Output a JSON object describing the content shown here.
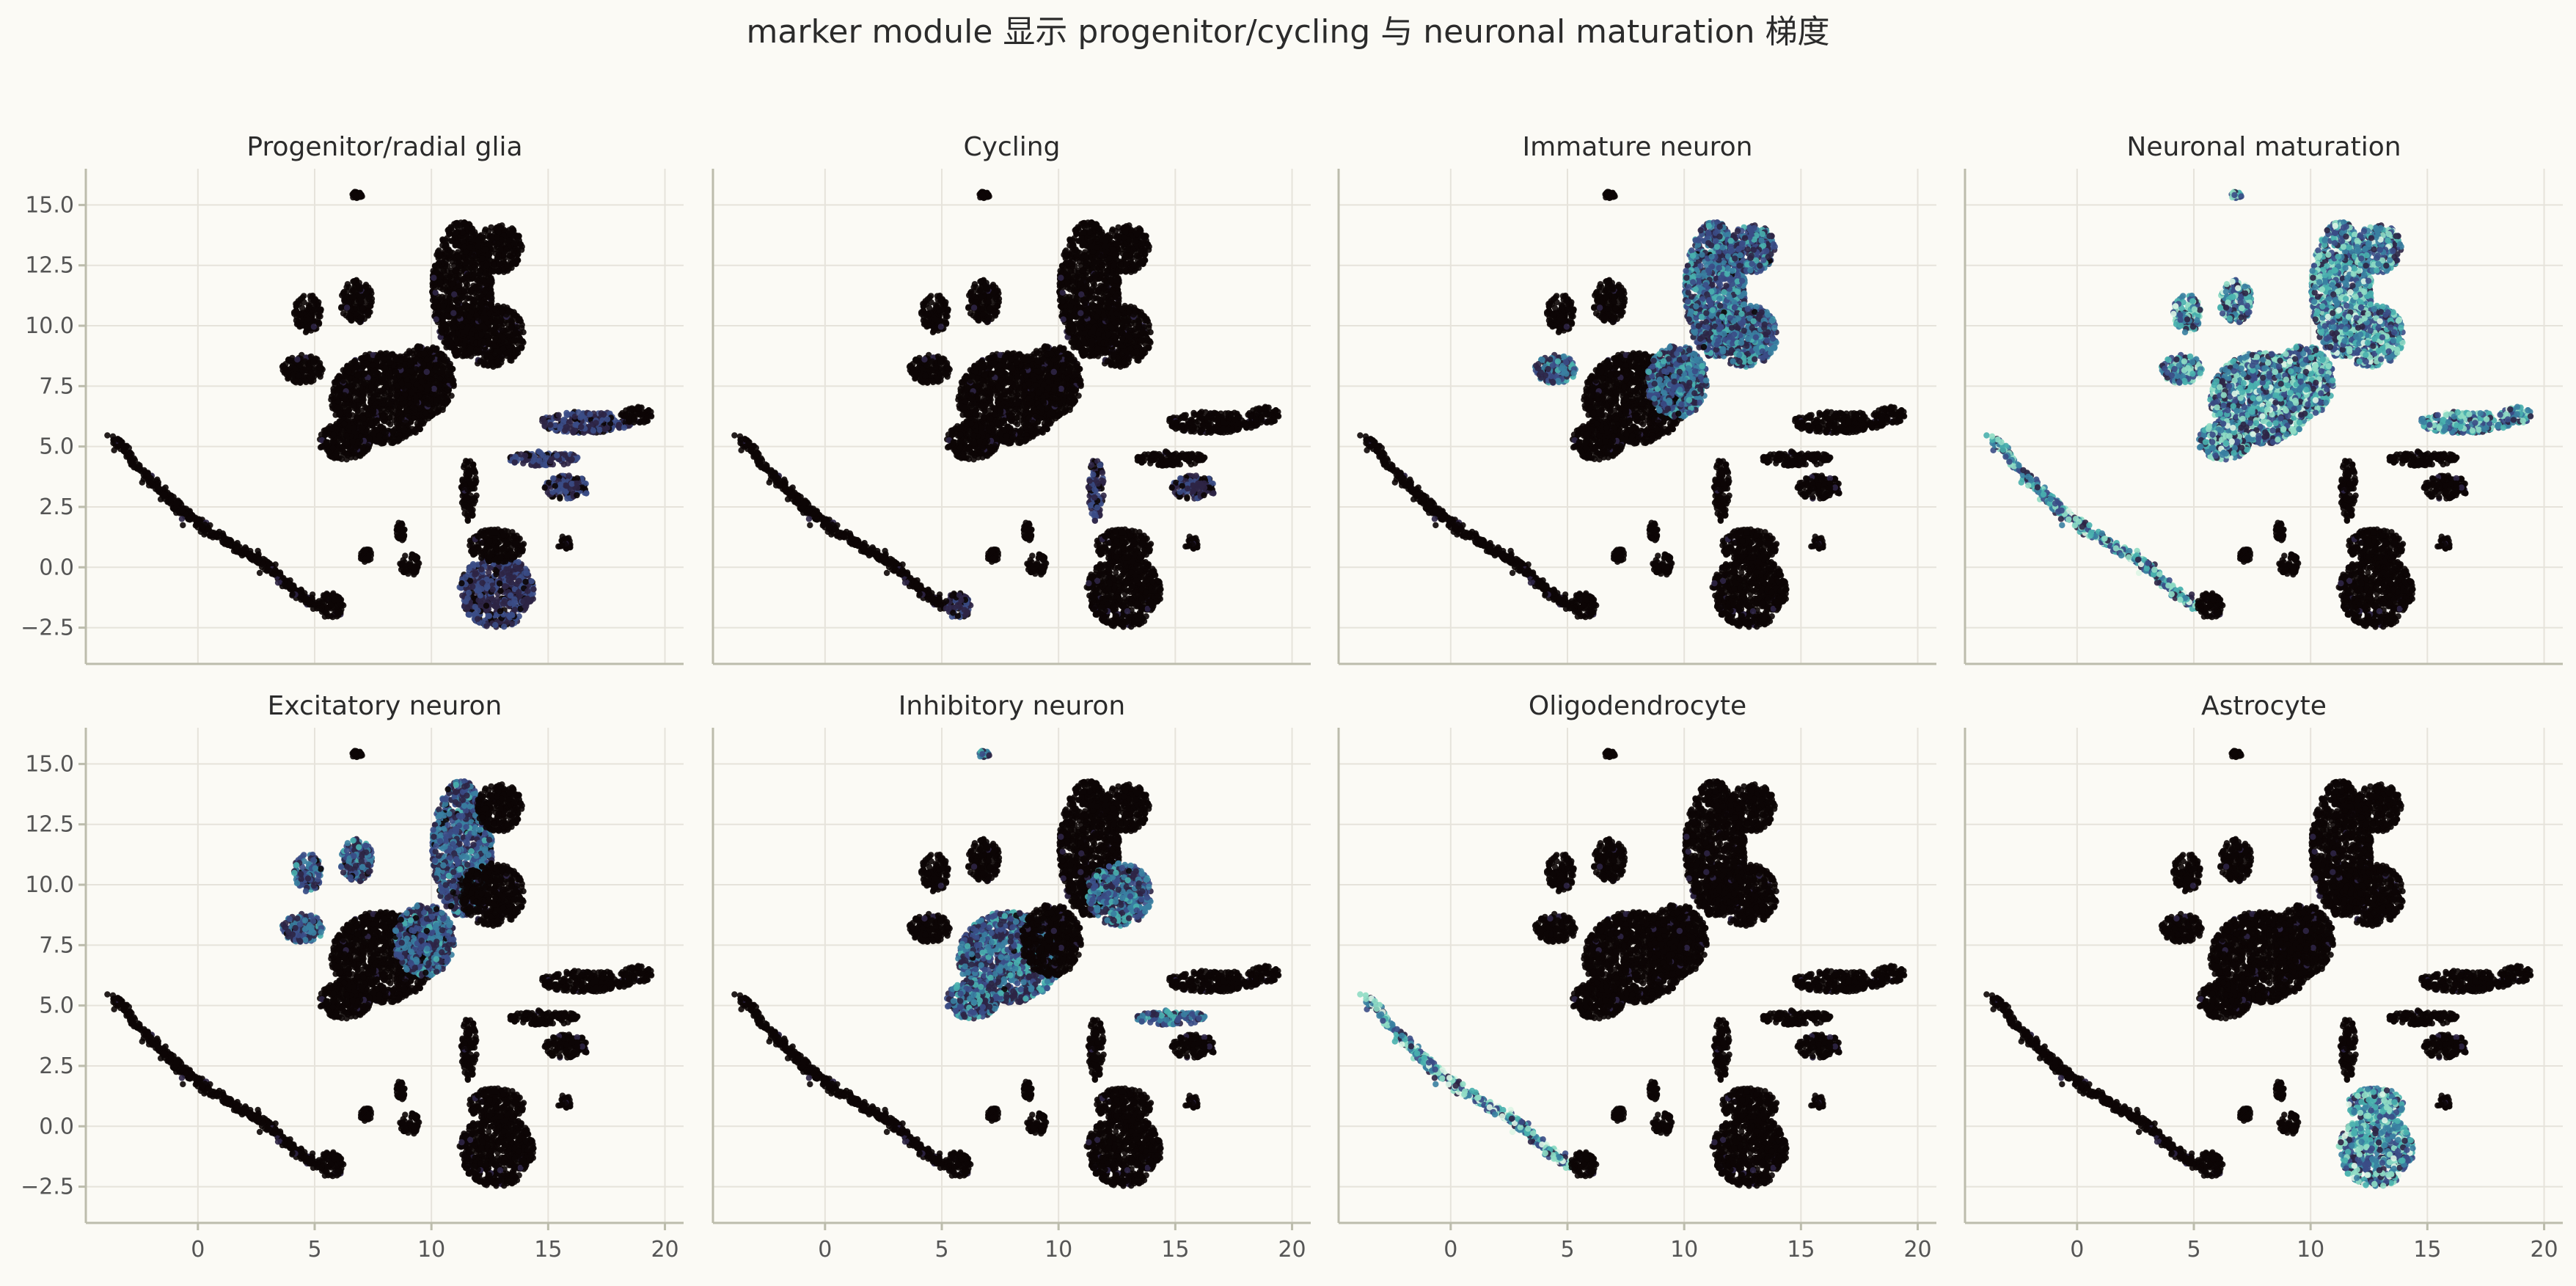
{
  "chart_data": {
    "type": "scatter",
    "title": "marker module 显示 progenitor/cycling 与 neuronal maturation 梯度",
    "xlim": [
      -4.8,
      20.8
    ],
    "ylim": [
      -4.0,
      16.5
    ],
    "x_ticks": [
      0,
      5,
      10,
      15,
      20
    ],
    "y_ticks": [
      -2.5,
      0.0,
      2.5,
      5.0,
      7.5,
      10.0,
      12.5,
      15.0
    ],
    "x_tick_labels": [
      "0",
      "5",
      "10",
      "15",
      "20"
    ],
    "y_tick_labels": [
      "−2.5",
      "0.0",
      "2.5",
      "5.0",
      "7.5",
      "10.0",
      "12.5",
      "15.0"
    ],
    "grid": true,
    "legend": "none",
    "colormap": [
      "#0c0606",
      "#2d2545",
      "#3b4c86",
      "#3a7fa1",
      "#49b0ae",
      "#8fdcc4",
      "#ddf5e6"
    ],
    "cluster_regions": [
      {
        "name": "streak",
        "points": [
          [
            -3.6,
            5.4
          ],
          [
            -2.5,
            4.1
          ],
          [
            -1.2,
            2.8
          ],
          [
            0.0,
            1.8
          ],
          [
            1.5,
            0.9
          ],
          [
            2.9,
            0.1
          ],
          [
            4.1,
            -0.9
          ],
          [
            5.0,
            -1.6
          ]
        ],
        "spread": 0.18
      },
      {
        "name": "bottom-left-blob",
        "center": [
          5.7,
          -1.6
        ],
        "rx": 0.55,
        "ry": 0.55
      },
      {
        "name": "top-small",
        "center": [
          6.8,
          15.4
        ],
        "rx": 0.25,
        "ry": 0.15
      },
      {
        "name": "left-lobe-1",
        "center": [
          4.7,
          10.5
        ],
        "rx": 0.6,
        "ry": 0.8
      },
      {
        "name": "left-lobe-2",
        "center": [
          6.8,
          11.0
        ],
        "rx": 0.7,
        "ry": 0.9
      },
      {
        "name": "left-lobe-3",
        "center": [
          4.5,
          8.2
        ],
        "rx": 0.9,
        "ry": 0.6
      },
      {
        "name": "center-mass",
        "center": [
          7.9,
          7.0
        ],
        "rx": 2.2,
        "ry": 1.9
      },
      {
        "name": "lower-center",
        "center": [
          6.3,
          5.2
        ],
        "rx": 1.1,
        "ry": 0.8
      },
      {
        "name": "center-right",
        "center": [
          9.7,
          7.7
        ],
        "rx": 1.3,
        "ry": 1.5
      },
      {
        "name": "upper-column",
        "center": [
          11.3,
          11.5
        ],
        "rx": 1.3,
        "ry": 2.8
      },
      {
        "name": "upper-right-blob",
        "center": [
          12.9,
          13.2
        ],
        "rx": 1.0,
        "ry": 1.0
      },
      {
        "name": "right-mid",
        "center": [
          12.6,
          9.6
        ],
        "rx": 1.4,
        "ry": 1.3
      },
      {
        "name": "right-arm",
        "center": [
          16.6,
          6.0
        ],
        "rx": 2.0,
        "ry": 0.45
      },
      {
        "name": "right-arm-end",
        "center": [
          18.8,
          6.3
        ],
        "rx": 0.7,
        "ry": 0.35
      },
      {
        "name": "thin-branch",
        "center": [
          14.8,
          4.5
        ],
        "rx": 1.5,
        "ry": 0.3
      },
      {
        "name": "right-scatter",
        "center": [
          15.8,
          3.3
        ],
        "rx": 1.0,
        "ry": 0.5
      },
      {
        "name": "mid-column",
        "center": [
          11.6,
          3.2
        ],
        "rx": 0.35,
        "ry": 1.3
      },
      {
        "name": "bottom-blob",
        "center": [
          12.8,
          -1.0
        ],
        "rx": 1.6,
        "ry": 1.5
      },
      {
        "name": "bottom-blob-top",
        "center": [
          12.8,
          0.9
        ],
        "rx": 1.2,
        "ry": 0.7
      },
      {
        "name": "small-mid",
        "center": [
          9.1,
          0.1
        ],
        "rx": 0.45,
        "ry": 0.45
      },
      {
        "name": "small-mid-2",
        "center": [
          8.7,
          1.5
        ],
        "rx": 0.2,
        "ry": 0.4
      },
      {
        "name": "small-right",
        "center": [
          15.7,
          1.0
        ],
        "rx": 0.3,
        "ry": 0.3
      },
      {
        "name": "small-left",
        "center": [
          7.2,
          0.5
        ],
        "rx": 0.25,
        "ry": 0.3
      }
    ],
    "panels": [
      {
        "title": "Progenitor/radial glia",
        "high_regions": [
          "right-arm",
          "thin-branch",
          "right-scatter",
          "bottom-blob"
        ],
        "level": 0.35
      },
      {
        "title": "Cycling",
        "high_regions": [
          "mid-column",
          "bottom-left-blob",
          "right-scatter"
        ],
        "level": 0.3
      },
      {
        "title": "Immature neuron",
        "high_regions": [
          "upper-column",
          "upper-right-blob",
          "center-right",
          "right-mid",
          "left-lobe-3"
        ],
        "level": 0.55
      },
      {
        "title": "Neuronal maturation",
        "high_regions": [
          "center-mass",
          "center-right",
          "upper-column",
          "upper-right-blob",
          "right-mid",
          "left-lobe-1",
          "left-lobe-2",
          "left-lobe-3",
          "lower-center",
          "right-arm",
          "right-arm-end",
          "top-small",
          "streak"
        ],
        "level": 0.75
      },
      {
        "title": "Excitatory neuron",
        "high_regions": [
          "left-lobe-1",
          "left-lobe-2",
          "left-lobe-3",
          "upper-column",
          "center-right"
        ],
        "level": 0.5
      },
      {
        "title": "Inhibitory neuron",
        "high_regions": [
          "center-mass",
          "lower-center",
          "right-mid",
          "thin-branch",
          "top-small"
        ],
        "level": 0.55
      },
      {
        "title": "Oligodendrocyte",
        "high_regions": [
          "streak"
        ],
        "level": 0.8
      },
      {
        "title": "Astrocyte",
        "high_regions": [
          "bottom-blob",
          "bottom-blob-top"
        ],
        "level": 0.75
      }
    ]
  }
}
